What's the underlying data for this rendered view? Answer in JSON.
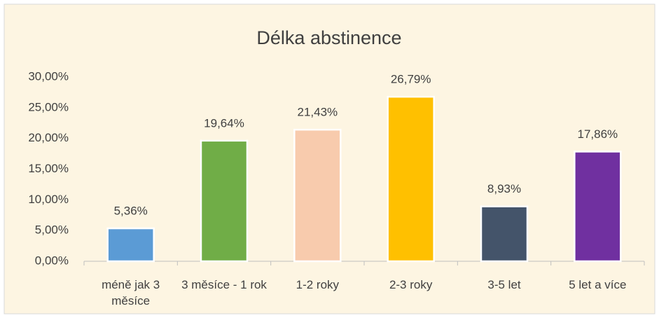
{
  "chart_data": {
    "type": "bar",
    "title": "Délka abstinence",
    "categories": [
      "méně jak 3 měsíce",
      "3 měsíce - 1 rok",
      "1-2 roky",
      "2-3 roky",
      "3-5 let",
      "5 let a více"
    ],
    "values": [
      5.36,
      19.64,
      21.43,
      26.79,
      8.93,
      17.86
    ],
    "value_labels": [
      "5,36%",
      "19,64%",
      "21,43%",
      "26,79%",
      "8,93%",
      "17,86%"
    ],
    "colors": [
      "#5b9bd5",
      "#70ad47",
      "#f8cbad",
      "#ffc000",
      "#44546a",
      "#7030a0"
    ],
    "ylim": [
      0,
      30
    ],
    "yticks": [
      {
        "value": 0,
        "label": "0,00%"
      },
      {
        "value": 5,
        "label": "5,00%"
      },
      {
        "value": 10,
        "label": "10,00%"
      },
      {
        "value": 15,
        "label": "15,00%"
      },
      {
        "value": 20,
        "label": "20,00%"
      },
      {
        "value": 25,
        "label": "25,00%"
      },
      {
        "value": 30,
        "label": "30,00%"
      }
    ],
    "grid": false
  }
}
